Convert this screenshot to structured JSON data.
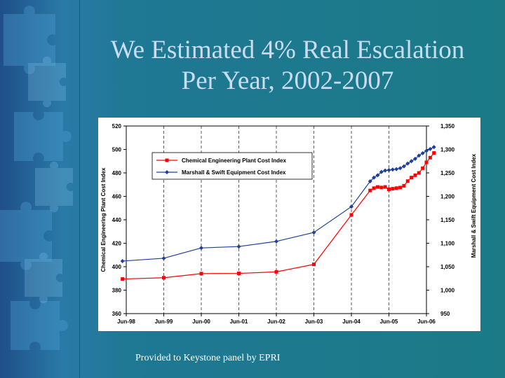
{
  "slide": {
    "title_line1": "We Estimated 4% Real Escalation",
    "title_line2": "Per Year, 2002-2007",
    "footer": "Provided to Keystone panel by EPRI"
  },
  "colors": {
    "ce_series": "#ff0000",
    "ms_series": "#1f3f9f",
    "background": "#1d6f93",
    "title": "#c9dcf2"
  },
  "chart_data": {
    "type": "line",
    "ylabel_left": "Chemical Engineering Plant Cost Index",
    "ylabel_right": "Marshall & Swift Equipment Cost Index",
    "x_ticks": [
      "Jun-98",
      "Jun-99",
      "Jun-00",
      "Jun-01",
      "Jun-02",
      "Jun-03",
      "Jun-04",
      "Jun-05",
      "Jun-06"
    ],
    "y_left": {
      "min": 360,
      "max": 520,
      "ticks": [
        "360",
        "380",
        "400",
        "420",
        "440",
        "460",
        "480",
        "500",
        "520"
      ]
    },
    "y_right": {
      "min": 950,
      "max": 1350,
      "ticks": [
        "950",
        "1,000",
        "1,050",
        "1,100",
        "1,150",
        "1,200",
        "1,250",
        "1,300",
        "1,350"
      ]
    },
    "grid": "dashed vertical lines",
    "legend": "top-left",
    "series": [
      {
        "name": "Chemical Engineering Plant Cost Index",
        "axis": "left",
        "points": [
          [
            1998.4,
            389.5
          ],
          [
            1999.5,
            390.6
          ],
          [
            2000.5,
            394.1
          ],
          [
            2001.5,
            394.3
          ],
          [
            2002.5,
            395.6
          ],
          [
            2003.5,
            402.0
          ],
          [
            2004.5,
            444.2
          ],
          [
            2005.0,
            465.0
          ],
          [
            2005.1,
            467.0
          ],
          [
            2005.2,
            468.0
          ],
          [
            2005.3,
            467.5
          ],
          [
            2005.4,
            468.0
          ],
          [
            2005.5,
            466.0
          ],
          [
            2005.6,
            466.5
          ],
          [
            2005.7,
            467.0
          ],
          [
            2005.8,
            467.5
          ],
          [
            2005.9,
            469.0
          ],
          [
            2006.0,
            473.0
          ],
          [
            2006.1,
            476.0
          ],
          [
            2006.2,
            478.0
          ],
          [
            2006.3,
            480.0
          ],
          [
            2006.4,
            484.0
          ],
          [
            2006.5,
            489.0
          ],
          [
            2006.6,
            493.0
          ],
          [
            2006.7,
            497.0
          ]
        ]
      },
      {
        "name": "Marshall & Swift Equipment Cost Index",
        "axis": "right",
        "points": [
          [
            1998.4,
            1062
          ],
          [
            1999.5,
            1068
          ],
          [
            2000.5,
            1090
          ],
          [
            2001.5,
            1093
          ],
          [
            2002.5,
            1104
          ],
          [
            2003.5,
            1123
          ],
          [
            2004.5,
            1178
          ],
          [
            2005.0,
            1232
          ],
          [
            2005.1,
            1240
          ],
          [
            2005.2,
            1245
          ],
          [
            2005.3,
            1252
          ],
          [
            2005.4,
            1255
          ],
          [
            2005.5,
            1256
          ],
          [
            2005.6,
            1257
          ],
          [
            2005.7,
            1258
          ],
          [
            2005.8,
            1260
          ],
          [
            2005.9,
            1264
          ],
          [
            2006.0,
            1270
          ],
          [
            2006.1,
            1275
          ],
          [
            2006.2,
            1280
          ],
          [
            2006.3,
            1287
          ],
          [
            2006.4,
            1292
          ],
          [
            2006.5,
            1297
          ],
          [
            2006.6,
            1301
          ],
          [
            2006.7,
            1305
          ]
        ]
      }
    ]
  }
}
